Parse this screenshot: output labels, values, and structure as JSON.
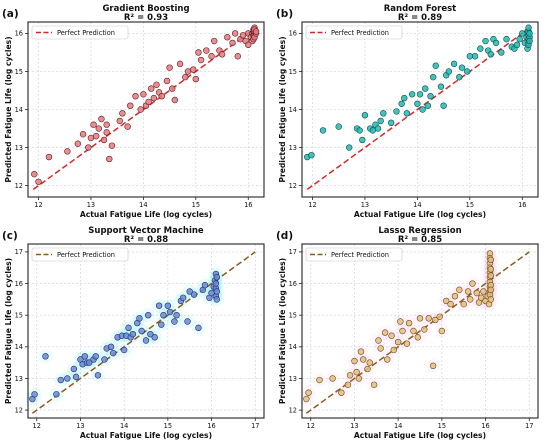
{
  "chart_data": [
    {
      "type": "scatter",
      "panel_label": "(a)",
      "title": "Gradient Boosting",
      "subtitle": "R² = 0.93",
      "xlabel": "Actual Fatigue Life (log cycles)",
      "ylabel": "Predicted Fatigue Life (log cycles)",
      "xlim": [
        11.8,
        16.3
      ],
      "ylim": [
        11.7,
        16.3
      ],
      "xticks": [
        "12",
        "13",
        "14",
        "15",
        "16"
      ],
      "yticks": [
        "12",
        "13",
        "14",
        "15",
        "16"
      ],
      "grid": true,
      "legend": {
        "label": "Perfect Prediction",
        "placement": "top-left"
      },
      "reference_line": [
        [
          11.9,
          11.9
        ],
        [
          16.15,
          16.15
        ]
      ],
      "colors": {
        "points": "#e8787c",
        "edge": "#5a1f22",
        "line": "#d62728"
      },
      "series": [
        {
          "x": [
            11.92,
            12.0,
            12.2,
            12.55,
            12.75,
            12.85,
            12.95,
            13.0,
            13.05,
            13.1,
            13.15,
            13.2,
            13.25,
            13.3,
            13.3,
            13.35,
            13.4,
            13.55,
            13.6,
            13.7,
            13.75,
            13.85,
            13.95,
            14.0,
            14.05,
            14.1,
            14.15,
            14.2,
            14.25,
            14.3,
            14.35,
            14.45,
            14.5,
            14.55,
            14.6,
            14.7,
            14.8,
            14.85,
            14.95,
            15.0,
            15.05,
            15.1,
            15.2,
            15.3,
            15.35,
            15.45,
            15.5,
            15.6,
            15.7,
            15.75,
            15.8,
            15.85,
            15.9,
            15.95,
            16.0,
            16.0,
            16.05,
            16.08,
            16.08,
            16.1,
            16.1,
            16.1,
            16.1,
            16.12,
            16.12,
            16.12,
            16.12,
            16.12,
            16.12,
            16.12,
            16.15,
            16.15
          ],
          "y": [
            12.3,
            12.1,
            12.75,
            12.9,
            13.1,
            13.35,
            13.0,
            13.25,
            13.6,
            13.3,
            13.5,
            13.75,
            13.2,
            13.6,
            13.4,
            12.7,
            13.05,
            13.7,
            13.9,
            13.55,
            14.1,
            14.35,
            14.0,
            14.4,
            14.1,
            14.2,
            14.55,
            14.3,
            14.65,
            14.45,
            14.35,
            14.75,
            15.1,
            14.55,
            14.25,
            15.2,
            14.85,
            15.0,
            15.05,
            14.8,
            15.5,
            15.3,
            15.55,
            15.4,
            15.8,
            15.55,
            15.45,
            15.9,
            15.75,
            16.0,
            15.4,
            15.85,
            15.95,
            15.8,
            16.0,
            15.7,
            15.9,
            15.8,
            16.0,
            16.1,
            15.95,
            16.05,
            15.85,
            16.0,
            16.1,
            15.95,
            16.05,
            16.15,
            15.9,
            16.1,
            16.0,
            16.05
          ]
        }
      ]
    },
    {
      "type": "scatter",
      "panel_label": "(b)",
      "title": "Random Forest",
      "subtitle": "R² = 0.89",
      "xlabel": "Actual Fatigue Life (log cycles)",
      "ylabel": "Predicted Fatigue Life (log cycles)",
      "xlim": [
        11.8,
        16.3
      ],
      "ylim": [
        11.7,
        16.3
      ],
      "xticks": [
        "12",
        "13",
        "14",
        "15",
        "16"
      ],
      "yticks": [
        "12",
        "13",
        "14",
        "15",
        "16"
      ],
      "grid": true,
      "legend": {
        "label": "Perfect Prediction",
        "placement": "top-left"
      },
      "reference_line": [
        [
          11.9,
          11.9
        ],
        [
          16.15,
          16.15
        ]
      ],
      "colors": {
        "points": "#23b8b3",
        "edge": "#0f4f4c",
        "line": "#d62728"
      },
      "series": [
        {
          "x": [
            11.9,
            11.98,
            12.2,
            12.5,
            12.7,
            12.85,
            12.9,
            12.95,
            13.0,
            13.1,
            13.15,
            13.2,
            13.25,
            13.3,
            13.35,
            13.5,
            13.6,
            13.7,
            13.75,
            13.8,
            13.9,
            14.0,
            14.05,
            14.1,
            14.15,
            14.2,
            14.25,
            14.3,
            14.35,
            14.45,
            14.5,
            14.55,
            14.6,
            14.7,
            14.8,
            14.85,
            14.95,
            15.0,
            15.1,
            15.2,
            15.3,
            15.35,
            15.4,
            15.45,
            15.5,
            15.6,
            15.7,
            15.8,
            15.85,
            15.9,
            15.95,
            16.0,
            16.05,
            16.08,
            16.1,
            16.1,
            16.12,
            16.12,
            16.12,
            16.12,
            16.12,
            16.12,
            16.14,
            16.14,
            16.14
          ],
          "y": [
            12.75,
            12.8,
            13.45,
            13.55,
            13.0,
            13.5,
            13.45,
            13.2,
            13.85,
            13.5,
            13.45,
            13.6,
            13.5,
            13.7,
            13.9,
            13.65,
            13.95,
            14.15,
            14.3,
            13.9,
            14.4,
            14.15,
            14.4,
            14.0,
            14.55,
            14.1,
            14.35,
            14.85,
            15.15,
            14.6,
            14.1,
            14.9,
            15.0,
            15.2,
            14.85,
            15.1,
            15.0,
            15.4,
            15.4,
            15.6,
            15.8,
            15.55,
            15.45,
            15.85,
            15.75,
            15.5,
            15.85,
            15.65,
            15.6,
            15.7,
            15.85,
            16.0,
            15.75,
            15.9,
            16.05,
            15.6,
            15.75,
            15.85,
            15.95,
            16.05,
            16.15,
            15.7,
            15.9,
            16.0,
            15.8
          ]
        }
      ]
    },
    {
      "type": "scatter",
      "panel_label": "(c)",
      "title": "Support Vector Machine",
      "subtitle": "R² = 0.88",
      "xlabel": "Actual Fatigue Life (log cycles)",
      "ylabel": "Predicted Fatigue Life (log cycles)",
      "xlim": [
        11.8,
        17.2
      ],
      "ylim": [
        11.75,
        17.25
      ],
      "xticks": [
        "12",
        "13",
        "14",
        "15",
        "16",
        "17"
      ],
      "yticks": [
        "12",
        "13",
        "14",
        "15",
        "16",
        "17"
      ],
      "grid": true,
      "legend": {
        "label": "Perfect Prediction",
        "placement": "top-left"
      },
      "reference_line": [
        [
          11.9,
          11.9
        ],
        [
          17.0,
          17.0
        ]
      ],
      "colors": {
        "points": "#6d86d6",
        "edge": "#1f2f6b",
        "line": "#8c5a1e",
        "glow": "#4fe3e8"
      },
      "series": [
        {
          "x": [
            11.9,
            11.95,
            12.2,
            12.45,
            12.55,
            12.7,
            12.85,
            12.9,
            13.0,
            13.05,
            13.1,
            13.15,
            13.2,
            13.3,
            13.35,
            13.4,
            13.55,
            13.6,
            13.7,
            13.75,
            13.85,
            13.95,
            14.0,
            14.05,
            14.1,
            14.15,
            14.2,
            14.3,
            14.35,
            14.4,
            14.5,
            14.55,
            14.6,
            14.7,
            14.8,
            14.85,
            14.9,
            15.0,
            15.05,
            15.15,
            15.2,
            15.3,
            15.35,
            15.45,
            15.5,
            15.6,
            15.7,
            15.8,
            15.85,
            15.95,
            16.0,
            16.05,
            16.08,
            16.1,
            16.1,
            16.1,
            16.1,
            16.12,
            16.12,
            16.12
          ],
          "y": [
            12.35,
            12.5,
            13.7,
            12.5,
            12.95,
            13.0,
            13.3,
            13.05,
            13.6,
            13.45,
            13.7,
            13.5,
            13.5,
            13.6,
            13.7,
            13.1,
            13.6,
            13.95,
            14.0,
            13.8,
            14.3,
            14.35,
            13.9,
            14.35,
            14.6,
            14.3,
            14.4,
            14.75,
            14.9,
            14.5,
            14.2,
            15.0,
            14.4,
            14.3,
            15.3,
            14.7,
            15.0,
            15.3,
            15.1,
            14.8,
            15.0,
            15.45,
            15.55,
            14.8,
            15.75,
            15.65,
            14.6,
            15.8,
            15.95,
            15.55,
            15.7,
            15.9,
            16.1,
            16.3,
            15.85,
            15.6,
            16.0,
            16.2,
            15.75,
            15.5
          ]
        }
      ]
    },
    {
      "type": "scatter",
      "panel_label": "(d)",
      "title": "Lasso Regression",
      "subtitle": "R² = 0.85",
      "xlabel": "Actual Fatigue Life (log cycles)",
      "ylabel": "Predicted Fatigue Life (log cycles)",
      "xlim": [
        11.8,
        17.2
      ],
      "ylim": [
        11.75,
        17.25
      ],
      "xticks": [
        "12",
        "13",
        "14",
        "15",
        "16",
        "17"
      ],
      "yticks": [
        "12",
        "13",
        "14",
        "15",
        "16",
        "17"
      ],
      "grid": true,
      "legend": {
        "label": "Perfect Prediction",
        "placement": "top-left"
      },
      "reference_line": [
        [
          11.9,
          11.9
        ],
        [
          17.0,
          17.0
        ]
      ],
      "colors": {
        "points": "#e4be7a",
        "edge": "#6b4a1a",
        "line": "#8c5a1e",
        "glow": "#f3b8ea"
      },
      "series": [
        {
          "x": [
            11.9,
            11.95,
            12.2,
            12.5,
            12.7,
            12.85,
            12.9,
            13.0,
            13.05,
            13.1,
            13.15,
            13.2,
            13.3,
            13.35,
            13.45,
            13.55,
            13.6,
            13.7,
            13.75,
            13.85,
            13.9,
            14.0,
            14.05,
            14.1,
            14.2,
            14.25,
            14.35,
            14.45,
            14.5,
            14.6,
            14.7,
            14.8,
            14.85,
            14.95,
            15.0,
            15.1,
            15.2,
            15.3,
            15.4,
            15.5,
            15.6,
            15.65,
            15.7,
            15.8,
            15.85,
            15.9,
            15.95,
            16.0,
            16.05,
            16.08,
            16.1,
            16.1,
            16.1,
            16.1,
            16.1,
            16.1,
            16.1,
            16.1,
            16.1,
            16.1,
            16.12,
            16.12,
            16.12,
            16.12,
            16.12,
            16.12
          ],
          "y": [
            12.35,
            12.55,
            12.95,
            13.0,
            12.55,
            12.8,
            13.1,
            13.55,
            13.2,
            13.0,
            13.85,
            13.6,
            13.3,
            13.5,
            12.8,
            14.2,
            13.95,
            14.45,
            13.6,
            14.35,
            13.9,
            14.15,
            14.8,
            14.5,
            14.1,
            14.75,
            14.5,
            14.3,
            14.9,
            14.55,
            14.9,
            13.4,
            14.85,
            14.95,
            14.5,
            15.45,
            15.35,
            15.6,
            15.8,
            15.35,
            15.75,
            15.5,
            16.0,
            15.7,
            15.4,
            15.55,
            15.75,
            15.45,
            15.6,
            15.35,
            16.95,
            16.8,
            16.65,
            16.5,
            16.35,
            16.2,
            16.05,
            15.9,
            15.75,
            15.65,
            16.75,
            16.45,
            16.25,
            15.95,
            15.8,
            15.5
          ]
        }
      ]
    }
  ]
}
